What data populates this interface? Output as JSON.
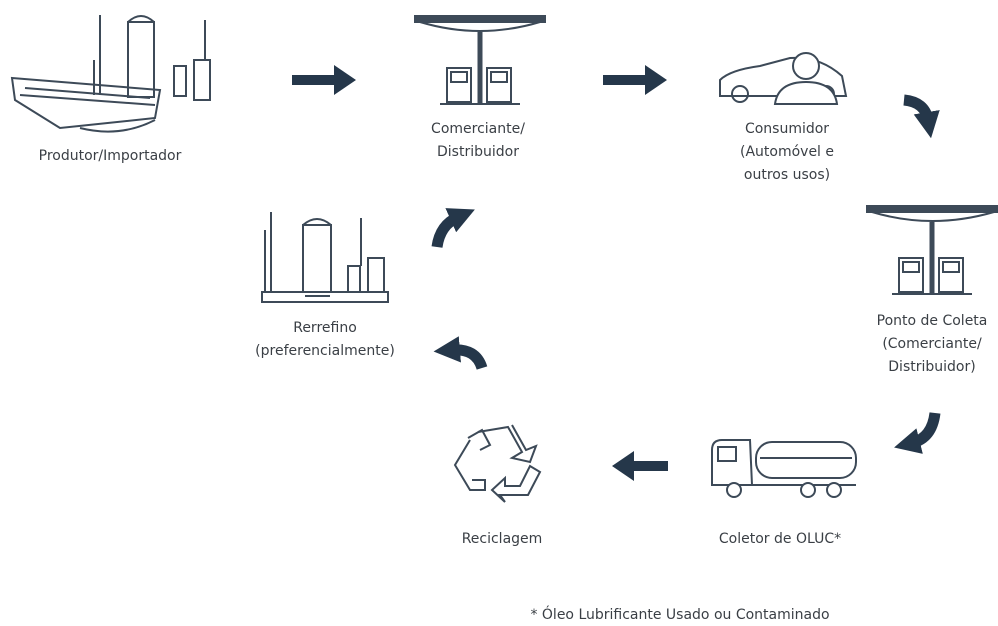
{
  "nodes": [
    {
      "label": [
        "Produtor/Importador"
      ]
    },
    {
      "label": [
        "Comerciante/",
        "Distribuidor"
      ]
    },
    {
      "label": [
        "Consumidor",
        "(Automóvel e",
        "outros usos)"
      ]
    },
    {
      "label": [
        "Ponto de Coleta",
        "(Comerciante/",
        "Distribuidor)"
      ]
    },
    {
      "label": [
        "Coletor de OLUC*"
      ]
    },
    {
      "label": [
        "Reciclagem"
      ]
    },
    {
      "label": [
        "Rerrefino",
        "(preferencialmente)"
      ]
    }
  ],
  "footnote": "* Óleo Lubrificante Usado ou Contaminado"
}
